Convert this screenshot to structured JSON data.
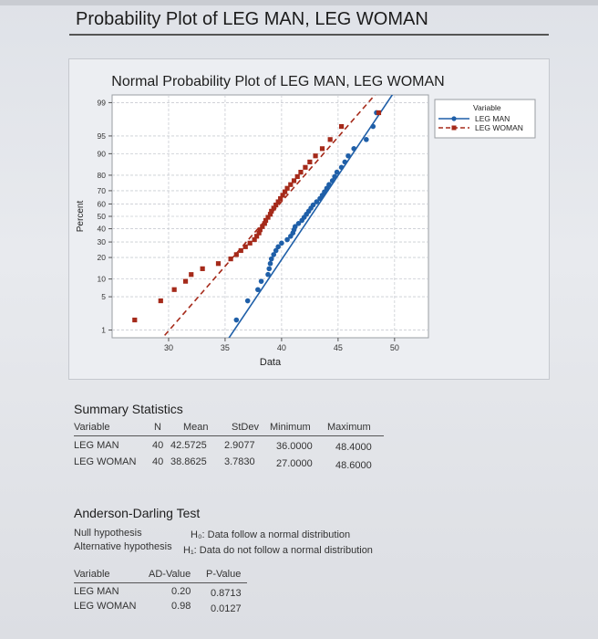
{
  "page": {
    "title": "Probability Plot of LEG MAN, LEG WOMAN"
  },
  "chart_data": {
    "type": "scatter",
    "title": "Normal Probability Plot of LEG MAN, LEG WOMAN",
    "xlabel": "Data",
    "ylabel": "Percent",
    "xlim": [
      25,
      53
    ],
    "x_ticks": [
      30,
      35,
      40,
      45,
      50
    ],
    "y_scale": "normal-probability",
    "y_ticks": [
      1,
      5,
      10,
      20,
      30,
      40,
      50,
      60,
      70,
      80,
      90,
      95,
      99
    ],
    "grid": true,
    "legend": {
      "title": "Variable",
      "placement": "right",
      "entries": [
        "LEG MAN",
        "LEG WOMAN"
      ]
    },
    "series": [
      {
        "name": "LEG MAN",
        "color": "#1f5fa8",
        "marker": "circle",
        "fit_line": "solid",
        "mean": 42.5725,
        "stdev": 2.9077,
        "points": [
          [
            36.0,
            1.7
          ],
          [
            37.0,
            4.2
          ],
          [
            37.9,
            6.7
          ],
          [
            38.2,
            9.2
          ],
          [
            38.8,
            11.7
          ],
          [
            38.9,
            14.2
          ],
          [
            39.0,
            16.7
          ],
          [
            39.1,
            19.2
          ],
          [
            39.3,
            21.7
          ],
          [
            39.5,
            24.2
          ],
          [
            39.7,
            26.7
          ],
          [
            40.0,
            29.2
          ],
          [
            40.5,
            31.7
          ],
          [
            40.8,
            34.2
          ],
          [
            41.0,
            36.7
          ],
          [
            41.1,
            39.2
          ],
          [
            41.2,
            41.7
          ],
          [
            41.5,
            44.2
          ],
          [
            41.8,
            46.7
          ],
          [
            42.0,
            49.2
          ],
          [
            42.2,
            51.7
          ],
          [
            42.4,
            54.2
          ],
          [
            42.6,
            56.7
          ],
          [
            42.8,
            59.2
          ],
          [
            43.1,
            61.7
          ],
          [
            43.4,
            64.2
          ],
          [
            43.6,
            66.7
          ],
          [
            43.8,
            69.2
          ],
          [
            44.0,
            71.7
          ],
          [
            44.2,
            74.2
          ],
          [
            44.5,
            76.7
          ],
          [
            44.7,
            79.2
          ],
          [
            44.9,
            81.7
          ],
          [
            45.3,
            84.2
          ],
          [
            45.6,
            86.7
          ],
          [
            45.9,
            89.2
          ],
          [
            46.4,
            91.7
          ],
          [
            47.5,
            94.2
          ],
          [
            48.1,
            96.7
          ],
          [
            48.4,
            98.3
          ]
        ]
      },
      {
        "name": "LEG WOMAN",
        "color": "#a52a1a",
        "marker": "square",
        "fit_line": "dashed",
        "mean": 38.8625,
        "stdev": 3.783,
        "points": [
          [
            27.0,
            1.7
          ],
          [
            29.3,
            4.2
          ],
          [
            30.5,
            6.7
          ],
          [
            31.5,
            9.2
          ],
          [
            32.0,
            11.7
          ],
          [
            33.0,
            14.2
          ],
          [
            34.4,
            16.7
          ],
          [
            35.5,
            19.2
          ],
          [
            36.0,
            21.7
          ],
          [
            36.4,
            24.2
          ],
          [
            36.8,
            26.7
          ],
          [
            37.2,
            29.2
          ],
          [
            37.6,
            31.7
          ],
          [
            37.8,
            34.2
          ],
          [
            38.0,
            36.7
          ],
          [
            38.1,
            39.2
          ],
          [
            38.3,
            41.7
          ],
          [
            38.5,
            44.2
          ],
          [
            38.6,
            46.7
          ],
          [
            38.8,
            49.2
          ],
          [
            39.0,
            51.7
          ],
          [
            39.1,
            54.2
          ],
          [
            39.3,
            56.7
          ],
          [
            39.5,
            59.2
          ],
          [
            39.7,
            61.7
          ],
          [
            39.9,
            64.2
          ],
          [
            40.1,
            66.7
          ],
          [
            40.3,
            69.2
          ],
          [
            40.5,
            71.7
          ],
          [
            40.8,
            74.2
          ],
          [
            41.1,
            76.7
          ],
          [
            41.4,
            79.2
          ],
          [
            41.7,
            81.7
          ],
          [
            42.1,
            84.2
          ],
          [
            42.5,
            86.7
          ],
          [
            43.0,
            89.2
          ],
          [
            43.6,
            91.7
          ],
          [
            44.3,
            94.2
          ],
          [
            45.3,
            96.7
          ],
          [
            48.6,
            98.3
          ]
        ]
      }
    ]
  },
  "summary": {
    "title": "Summary Statistics",
    "headers": [
      "Variable",
      "N",
      "Mean",
      "StDev",
      "Minimum",
      "Maximum"
    ],
    "rows": [
      [
        "LEG MAN",
        "40",
        "42.5725",
        "2.9077",
        "36.0000",
        "48.4000"
      ],
      [
        "LEG WOMAN",
        "40",
        "38.8625",
        "3.7830",
        "27.0000",
        "48.6000"
      ]
    ]
  },
  "ad_test": {
    "title": "Anderson-Darling Test",
    "null_label": "Null hypothesis",
    "null_text": "H₀: Data follow a normal distribution",
    "alt_label": "Alternative hypothesis",
    "alt_text": "H₁: Data do not follow a normal distribution",
    "headers": [
      "Variable",
      "AD-Value",
      "P-Value"
    ],
    "rows": [
      [
        "LEG MAN",
        "0.20",
        "0.8713"
      ],
      [
        "LEG WOMAN",
        "0.98",
        "0.0127"
      ]
    ]
  }
}
